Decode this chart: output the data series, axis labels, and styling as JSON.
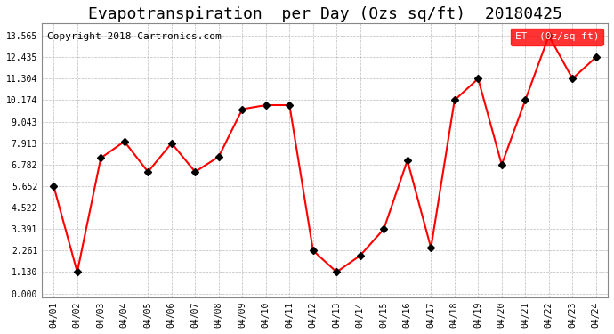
{
  "title": "Evapotranspiration  per Day (Ozs sq/ft)  20180425",
  "copyright": "Copyright 2018 Cartronics.com",
  "legend_label": "ET  (0z/sq ft)",
  "x_labels": [
    "04/01",
    "04/02",
    "04/03",
    "04/04",
    "04/05",
    "04/06",
    "04/07",
    "04/08",
    "04/09",
    "04/10",
    "04/11",
    "04/12",
    "04/13",
    "04/14",
    "04/15",
    "04/16",
    "04/17",
    "04/18",
    "04/19",
    "04/20",
    "04/21",
    "04/22",
    "04/23",
    "04/24"
  ],
  "y_values": [
    5.652,
    1.13,
    7.13,
    8.0,
    6.4,
    7.913,
    6.4,
    7.2,
    9.7,
    9.913,
    9.913,
    2.261,
    1.13,
    2.0,
    3.391,
    7.0,
    2.4,
    10.174,
    11.304,
    6.782,
    10.174,
    13.565,
    11.304,
    12.435
  ],
  "line_color": "red",
  "marker_color": "black",
  "marker_size": 4,
  "line_width": 1.5,
  "y_ticks": [
    0.0,
    1.13,
    2.261,
    3.391,
    4.522,
    5.652,
    6.782,
    7.913,
    9.043,
    10.174,
    11.304,
    12.435,
    13.565
  ],
  "ylim": [
    -0.2,
    14.2
  ],
  "bg_color": "white",
  "grid_color": "#aaaaaa",
  "title_fontsize": 13,
  "copyright_fontsize": 8,
  "legend_bg": "red",
  "legend_text_color": "white"
}
